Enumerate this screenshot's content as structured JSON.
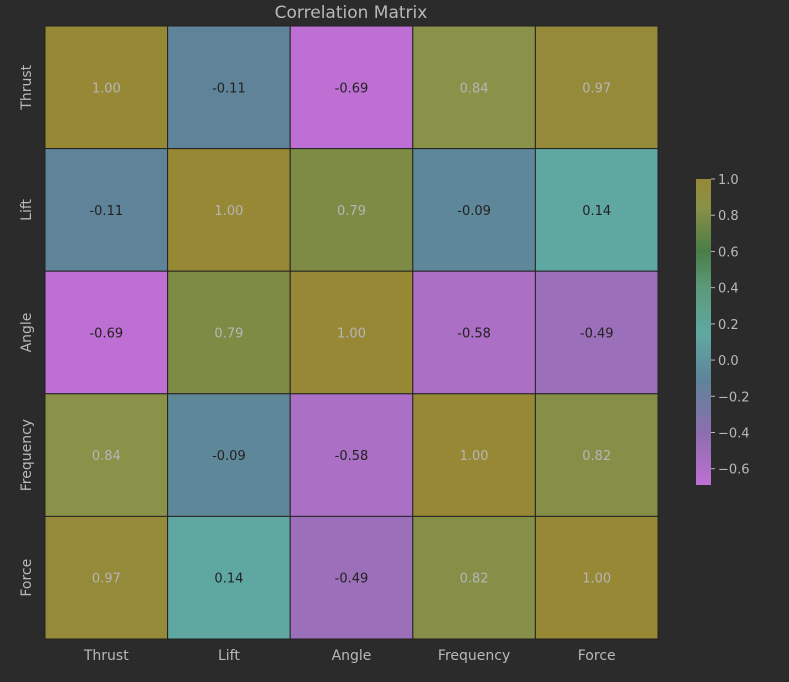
{
  "chart_data": {
    "type": "heatmap",
    "title": "Correlation Matrix",
    "x_labels": [
      "Thrust",
      "Lift",
      "Angle",
      "Frequency",
      "Force"
    ],
    "y_labels": [
      "Thrust",
      "Lift",
      "Angle",
      "Frequency",
      "Force"
    ],
    "values": [
      [
        1.0,
        -0.11,
        -0.69,
        0.84,
        0.97
      ],
      [
        -0.11,
        1.0,
        0.79,
        -0.09,
        0.14
      ],
      [
        -0.69,
        0.79,
        1.0,
        -0.58,
        -0.49
      ],
      [
        0.84,
        -0.09,
        -0.58,
        1.0,
        0.82
      ],
      [
        0.97,
        0.14,
        -0.49,
        0.82,
        1.0
      ]
    ],
    "annotation_format": "0.00",
    "colorbar": {
      "range": [
        -0.69,
        1.0
      ],
      "ticks": [
        1.0,
        0.8,
        0.6,
        0.4,
        0.2,
        0.0,
        -0.2,
        -0.4,
        -0.6
      ],
      "tick_labels": [
        "1.0",
        "0.8",
        "0.6",
        "0.4",
        "0.2",
        "0.0",
        "−0.2",
        "−0.4",
        "−0.6"
      ],
      "colormap_stops": [
        {
          "value": -0.69,
          "color": "#be6fd3"
        },
        {
          "value": -0.4,
          "color": "#8b6fae"
        },
        {
          "value": -0.11,
          "color": "#5f8499"
        },
        {
          "value": 0.14,
          "color": "#5fa8a2"
        },
        {
          "value": 0.4,
          "color": "#5c9a7a"
        },
        {
          "value": 0.6,
          "color": "#4a7d48"
        },
        {
          "value": 0.79,
          "color": "#7d8b45"
        },
        {
          "value": 0.84,
          "color": "#8a9148"
        },
        {
          "value": 1.0,
          "color": "#968835"
        }
      ]
    },
    "colors": {
      "background": "#2b2b2b",
      "text": "#b9b9b9",
      "annotation_dark": "#222222",
      "annotation_light": "#b6b6b6",
      "grid_line": "#222222"
    }
  }
}
